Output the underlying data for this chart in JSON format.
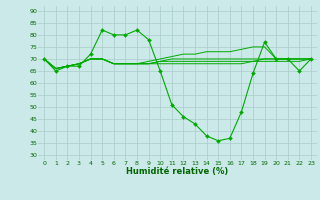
{
  "title": "",
  "xlabel": "Humidité relative (%)",
  "ylabel": "",
  "bg_color": "#cce9e9",
  "grid_color": "#aacccc",
  "line_color": "#00aa00",
  "xlim": [
    -0.5,
    23.5
  ],
  "ylim": [
    28,
    92
  ],
  "yticks": [
    30,
    35,
    40,
    45,
    50,
    55,
    60,
    65,
    70,
    75,
    80,
    85,
    90
  ],
  "xticks": [
    0,
    1,
    2,
    3,
    4,
    5,
    6,
    7,
    8,
    9,
    10,
    11,
    12,
    13,
    14,
    15,
    16,
    17,
    18,
    19,
    20,
    21,
    22,
    23
  ],
  "main_series": [
    70,
    65,
    67,
    67,
    72,
    82,
    80,
    80,
    82,
    78,
    65,
    51,
    46,
    43,
    38,
    36,
    37,
    48,
    64,
    77,
    70,
    70,
    65,
    70
  ],
  "trend_lines": [
    [
      70,
      66,
      67,
      68,
      70,
      70,
      68,
      68,
      68,
      68,
      68,
      68,
      68,
      68,
      68,
      68,
      68,
      68,
      69,
      69,
      69,
      69,
      69,
      70
    ],
    [
      70,
      66,
      67,
      68,
      70,
      70,
      68,
      68,
      68,
      68,
      69,
      69,
      69,
      69,
      69,
      69,
      69,
      69,
      69,
      70,
      70,
      70,
      70,
      70
    ],
    [
      70,
      66,
      67,
      68,
      70,
      70,
      68,
      68,
      68,
      68,
      69,
      70,
      70,
      70,
      70,
      70,
      70,
      70,
      70,
      70,
      70,
      70,
      70,
      70
    ],
    [
      70,
      66,
      67,
      68,
      70,
      70,
      68,
      68,
      68,
      69,
      70,
      71,
      72,
      72,
      73,
      73,
      73,
      74,
      75,
      75,
      70,
      70,
      70,
      70
    ]
  ]
}
